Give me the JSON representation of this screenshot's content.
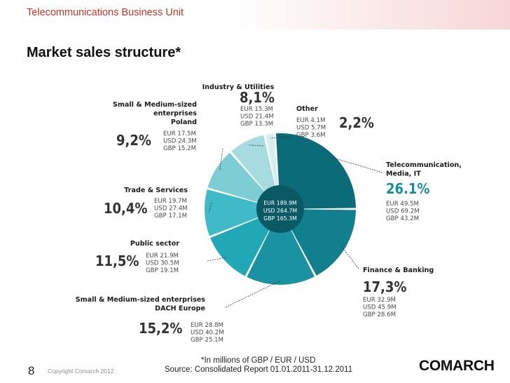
{
  "header": {
    "unit": "Telecommunications Business Unit"
  },
  "title": "Market sales structure*",
  "chart_data": {
    "type": "pie",
    "style": "donut",
    "center": {
      "eur": "EUR 189.9M",
      "usd": "USD 264.7M",
      "gbp": "GBP 165.3M"
    },
    "slices": [
      {
        "name": "Telecommunication, Media, IT",
        "name_lines": [
          "Telecommunication,",
          "Media, IT"
        ],
        "value": 26.1,
        "pct": "26.1%",
        "eur": "EUR 49.5M",
        "usd": "USD 69.2M",
        "gbp": "GBP 43.2M",
        "color": "#0b6b78"
      },
      {
        "name": "Finance & Banking",
        "name_lines": [
          "Finance & Banking"
        ],
        "value": 17.3,
        "pct": "17,3%",
        "eur": "EUR 32.9M",
        "usd": "USD 45.9M",
        "gbp": "GBP 28.6M",
        "color": "#127f8e"
      },
      {
        "name": "Small & Medium-sized enterprises DACH Europe",
        "name_lines": [
          "Small & Medium-sized enterprises",
          "DACH Europe"
        ],
        "value": 15.2,
        "pct": "15,2%",
        "eur": "EUR 28.8M",
        "usd": "USD 40.2M",
        "gbp": "GBP 25.1M",
        "color": "#1a92a1"
      },
      {
        "name": "Public sector",
        "name_lines": [
          "Public sector"
        ],
        "value": 11.5,
        "pct": "11,5%",
        "eur": "EUR 21.9M",
        "usd": "USD 30.5M",
        "gbp": "GBP 19.1M",
        "color": "#21a7b6"
      },
      {
        "name": "Trade & Services",
        "name_lines": [
          "Trade & Services"
        ],
        "value": 10.4,
        "pct": "10,4%",
        "eur": "EUR 19.7M",
        "usd": "USD 27.4M",
        "gbp": "GBP 17.1M",
        "color": "#3fbac6"
      },
      {
        "name": "Small & Medium-sized enterprises Poland",
        "name_lines": [
          "Small & Medium-sized",
          "enterprises",
          "Poland"
        ],
        "value": 9.2,
        "pct": "9,2%",
        "eur": "EUR 17.5M",
        "usd": "USD 24.3M",
        "gbp": "GBP 15.2M",
        "color": "#7fcdd4"
      },
      {
        "name": "Industry & Utilities",
        "name_lines": [
          "Industry & Utilities"
        ],
        "value": 8.1,
        "pct": "8,1%",
        "eur": "EUR 15.3M",
        "usd": "USD 21.4M",
        "gbp": "GBP 13.3M",
        "color": "#a7dbe0"
      },
      {
        "name": "Other",
        "name_lines": [
          "Other"
        ],
        "value": 2.2,
        "pct": "2,2%",
        "eur": "EUR 4.1M",
        "usd": "USD 5.7M",
        "gbp": "GBP 3.6M",
        "color": "#d6eef0"
      }
    ]
  },
  "footer": {
    "page_number": "8",
    "copyright": "Copyright  Comarch 2012",
    "note": "*In millions of GBP / EUR / USD",
    "source": "Source: Consolidated Report 01.01.2011-31.12.2011",
    "logo": "COMARCH"
  },
  "colors": {
    "accent_red": "#c0392b",
    "pct_highlight": "#1a8ca0"
  }
}
